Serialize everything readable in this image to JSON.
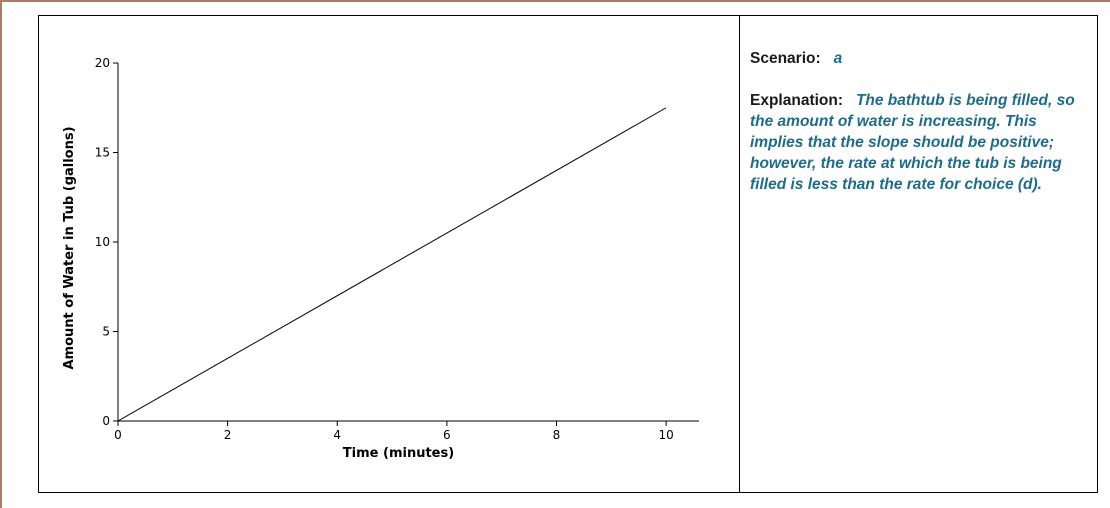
{
  "scenario": {
    "label": "Scenario:",
    "value": "a"
  },
  "explanation": {
    "label": "Explanation:",
    "text": "The bathtub is being filled, so the amount of water is increasing.  This implies that the slope should be positive; however, the rate at which the tub is being filled is less than the rate for choice (d)."
  },
  "colors": {
    "frame_border": "#b07a60",
    "answer_text": "#1f6b8a",
    "line": "#000000"
  },
  "chart_data": {
    "type": "line",
    "title": "",
    "xlabel": "Time (minutes)",
    "ylabel": "Amount of Water in Tub (gallons)",
    "xlim": [
      0,
      10.6
    ],
    "ylim": [
      0,
      20
    ],
    "xticks": [
      0,
      2,
      4,
      6,
      8,
      10
    ],
    "yticks": [
      0,
      5,
      10,
      15,
      20
    ],
    "grid": false,
    "series": [
      {
        "x": [
          0,
          10
        ],
        "y": [
          0,
          17.5
        ]
      }
    ]
  }
}
